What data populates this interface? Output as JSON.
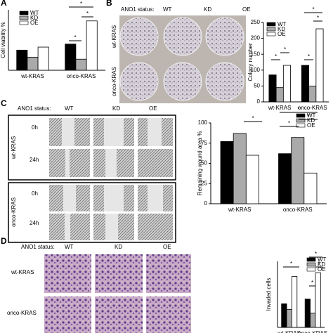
{
  "panels": {
    "a": "A",
    "b": "B",
    "c": "C",
    "d": "D"
  },
  "status_label": "ANO1 status:",
  "status": [
    "WT",
    "KD",
    "OE"
  ],
  "rows": [
    "wt-KRAS",
    "onco-KRAS"
  ],
  "times": [
    "0h",
    "24h"
  ],
  "chart_data": [
    {
      "type": "bar",
      "y_label": "Cell viability %",
      "categories": [
        "wt-KRAS",
        "onco-KRAS"
      ],
      "series": [
        {
          "name": "WT",
          "color": "#000000",
          "values": [
            100,
            130
          ]
        },
        {
          "name": "KD",
          "color": "#aaaaaa",
          "values": [
            65,
            55
          ]
        },
        {
          "name": "OE",
          "color": "#ffffff",
          "values": [
            115,
            245
          ]
        }
      ],
      "ylim": [
        0,
        300
      ],
      "annotations": [
        "*",
        "*",
        "*"
      ]
    },
    {
      "type": "bar",
      "y_label": "Colony number",
      "categories": [
        "wt-KRAS",
        "onco-KRAS"
      ],
      "series": [
        {
          "name": "WT",
          "color": "#000000",
          "values": [
            85,
            115
          ]
        },
        {
          "name": "KD",
          "color": "#aaaaaa",
          "values": [
            45,
            50
          ]
        },
        {
          "name": "OE",
          "color": "#ffffff",
          "values": [
            115,
            230
          ]
        }
      ],
      "ylim": [
        0,
        250
      ],
      "yticks": [
        0,
        50,
        100,
        150,
        200,
        250
      ],
      "annotations": [
        "*",
        "*",
        "*",
        "*",
        "*"
      ]
    },
    {
      "type": "bar",
      "y_label": "Remaining wound area %",
      "categories": [
        "wt-KRAS",
        "onco-KRAS"
      ],
      "series": [
        {
          "name": "WT",
          "color": "#000000",
          "values": [
            77,
            62
          ]
        },
        {
          "name": "KD",
          "color": "#aaaaaa",
          "values": [
            87,
            82
          ]
        },
        {
          "name": "OE",
          "color": "#ffffff",
          "values": [
            60,
            38
          ]
        }
      ],
      "ylim": [
        0,
        100
      ],
      "yticks": [
        0,
        25,
        50,
        75,
        100
      ],
      "annotations": [
        "*",
        "*",
        "*",
        "*"
      ]
    },
    {
      "type": "bar",
      "y_label": "Invaded cells",
      "categories": [
        "wt-KRAS",
        "onco-KRAS"
      ],
      "series": [
        {
          "name": "WT",
          "color": "#000000",
          "values": [
            250,
            300
          ]
        },
        {
          "name": "KD",
          "color": "#aaaaaa",
          "values": [
            190,
            150
          ]
        },
        {
          "name": "OE",
          "color": "#ffffff",
          "values": [
            540,
            580
          ]
        }
      ],
      "ylim": [
        0,
        700
      ],
      "annotations": [
        "*",
        "*",
        "*",
        "*"
      ]
    }
  ]
}
